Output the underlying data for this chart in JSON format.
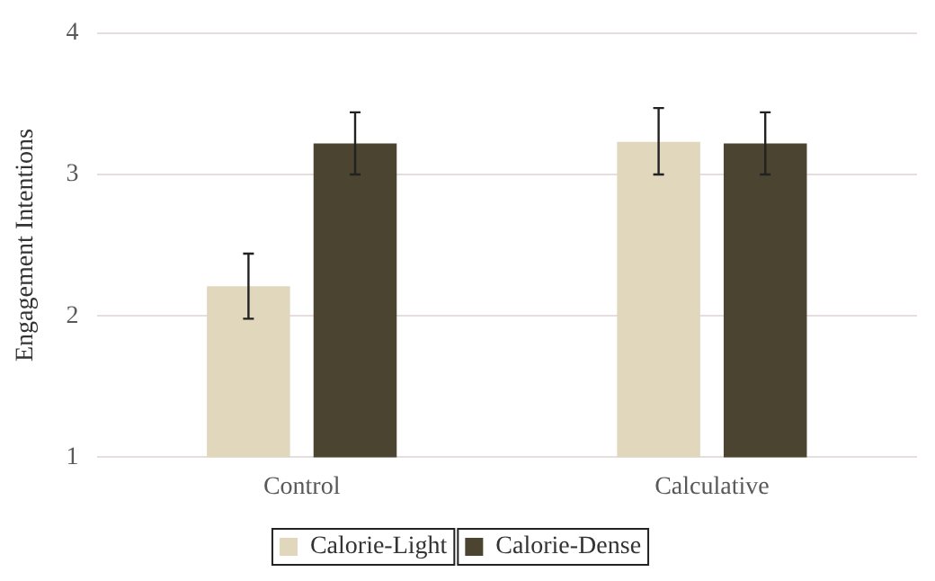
{
  "chart_data": {
    "type": "bar",
    "ylabel": "Engagement Intentions",
    "categories": [
      "Control",
      "Calculative"
    ],
    "series": [
      {
        "name": "Calorie-Light",
        "color": "#e0d7bc",
        "values": [
          2.21,
          3.23
        ],
        "errors": [
          [
            1.98,
            2.44
          ],
          [
            3.0,
            3.47
          ]
        ]
      },
      {
        "name": "Calorie-Dense",
        "color": "#4b4430",
        "values": [
          3.22,
          3.22
        ],
        "errors": [
          [
            3.0,
            3.44
          ],
          [
            3.0,
            3.44
          ]
        ]
      }
    ],
    "ylim": [
      1,
      4
    ],
    "yticks": [
      1,
      2,
      3,
      4
    ],
    "grid": "y",
    "legend": "bottom"
  }
}
